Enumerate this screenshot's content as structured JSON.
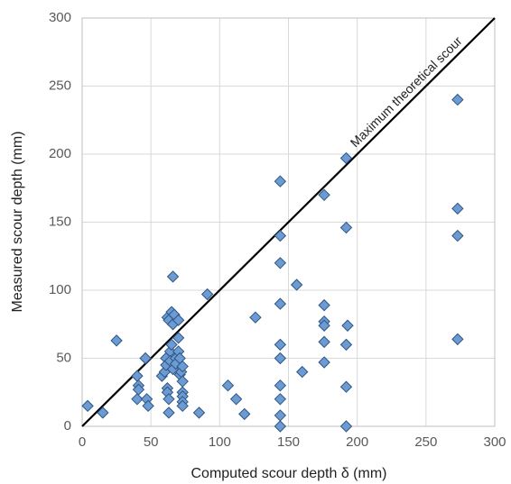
{
  "chart_data": {
    "type": "scatter",
    "x_label": "Computed scour depth δ (mm)",
    "y_label": "Measured scour depth (mm)",
    "annotation": "Maximum theoretical scour",
    "color": "#6b9bd2",
    "grid": true,
    "xlim": [
      0,
      300
    ],
    "ylim": [
      0,
      300
    ],
    "xticks": [
      0,
      50,
      100,
      150,
      200,
      250,
      300
    ],
    "yticks": [
      0,
      50,
      100,
      150,
      200,
      250,
      300
    ],
    "x": [
      4,
      15,
      25,
      40,
      41,
      41,
      40,
      46,
      47,
      48,
      58,
      60,
      61,
      61,
      62,
      62,
      63,
      63,
      62,
      63,
      64,
      64,
      65,
      65,
      66,
      66,
      66,
      67,
      68,
      68,
      70,
      70,
      70,
      71,
      71,
      72,
      73,
      73,
      73,
      73,
      73,
      73,
      85,
      91,
      106,
      112,
      118,
      126,
      144,
      144,
      144,
      144,
      144,
      144,
      144,
      144,
      144,
      144,
      156,
      160,
      176,
      176,
      176,
      176,
      176,
      176,
      192,
      192,
      193,
      192,
      192,
      192,
      273,
      273,
      273,
      273
    ],
    "values": [
      15,
      10,
      63,
      37,
      30,
      27,
      20,
      50,
      20,
      15,
      37,
      40,
      50,
      45,
      28,
      25,
      20,
      10,
      80,
      78,
      55,
      48,
      60,
      84,
      110,
      75,
      42,
      82,
      50,
      46,
      78,
      65,
      55,
      50,
      38,
      40,
      44,
      33,
      25,
      22,
      18,
      15,
      10,
      97,
      30,
      20,
      9,
      80,
      180,
      140,
      120,
      90,
      60,
      50,
      30,
      20,
      8,
      0,
      104,
      40,
      170,
      89,
      77,
      74,
      62,
      47,
      197,
      146,
      74,
      60,
      29,
      0,
      240,
      160,
      140,
      64
    ]
  }
}
